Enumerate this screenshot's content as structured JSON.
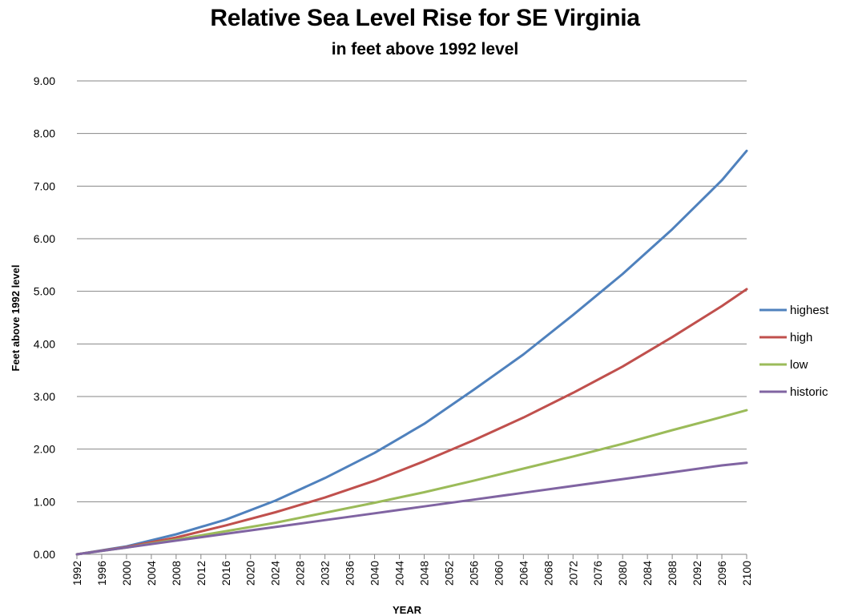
{
  "title": "Relative Sea Level Rise for SE Virginia",
  "subtitle": "in feet above 1992 level",
  "chart_data": {
    "type": "line",
    "title": "Relative Sea Level Rise for SE Virginia",
    "subtitle": "in feet above 1992 level",
    "xlabel": "YEAR",
    "ylabel": "Feet above 1992 level",
    "ylim": [
      0,
      9
    ],
    "yticks": [
      "0.00",
      "1.00",
      "2.00",
      "3.00",
      "4.00",
      "5.00",
      "6.00",
      "7.00",
      "8.00",
      "9.00"
    ],
    "xlim": [
      1992,
      2100
    ],
    "xticks": [
      "1992",
      "1996",
      "2000",
      "2004",
      "2008",
      "2012",
      "2016",
      "2020",
      "2024",
      "2028",
      "2032",
      "2036",
      "2040",
      "2044",
      "2048",
      "2052",
      "2056",
      "2060",
      "2064",
      "2068",
      "2072",
      "2076",
      "2080",
      "2084",
      "2088",
      "2092",
      "2096",
      "2100"
    ],
    "grid": true,
    "legend_position": "right",
    "x": [
      1992,
      2000,
      2008,
      2016,
      2024,
      2032,
      2040,
      2048,
      2056,
      2064,
      2072,
      2080,
      2088,
      2096,
      2100
    ],
    "series": [
      {
        "name": "highest",
        "color": "#4F81BD",
        "values": [
          0.0,
          0.15,
          0.38,
          0.66,
          1.02,
          1.45,
          1.93,
          2.48,
          3.13,
          3.8,
          4.55,
          5.33,
          6.18,
          7.11,
          7.67
        ]
      },
      {
        "name": "high",
        "color": "#C0504D",
        "values": [
          0.0,
          0.14,
          0.32,
          0.55,
          0.8,
          1.08,
          1.4,
          1.77,
          2.17,
          2.6,
          3.07,
          3.57,
          4.13,
          4.72,
          5.04
        ]
      },
      {
        "name": "low",
        "color": "#9BBB59",
        "values": [
          0.0,
          0.13,
          0.28,
          0.44,
          0.6,
          0.79,
          0.98,
          1.18,
          1.4,
          1.63,
          1.86,
          2.1,
          2.36,
          2.61,
          2.74
        ]
      },
      {
        "name": "historic",
        "color": "#8064A2",
        "values": [
          0.0,
          0.13,
          0.26,
          0.39,
          0.52,
          0.65,
          0.78,
          0.91,
          1.04,
          1.17,
          1.3,
          1.43,
          1.56,
          1.69,
          1.74
        ]
      }
    ]
  }
}
